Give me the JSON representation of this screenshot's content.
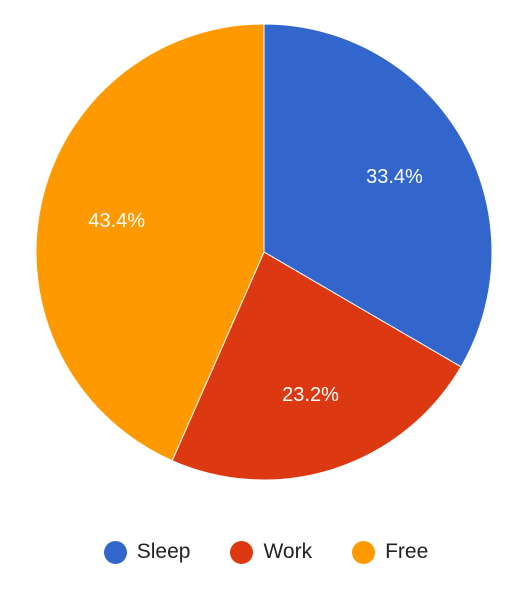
{
  "chart_data": {
    "type": "pie",
    "title": "",
    "legend_position": "bottom",
    "slices": [
      {
        "name": "Sleep",
        "value": 33.4,
        "label": "33.4%",
        "color": "#3366cc"
      },
      {
        "name": "Work",
        "value": 23.2,
        "label": "23.2%",
        "color": "#dc3912"
      },
      {
        "name": "Free",
        "value": 43.4,
        "label": "43.4%",
        "color": "#ff9900"
      }
    ]
  }
}
